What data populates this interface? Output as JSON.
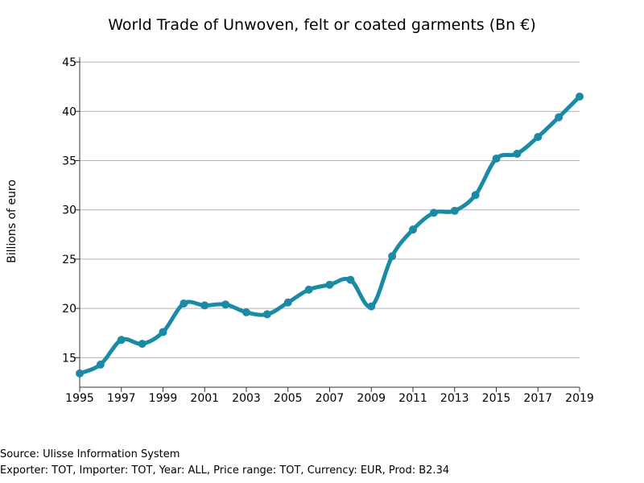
{
  "chart_data": {
    "type": "line",
    "title": "World Trade of Unwoven, felt or coated garments (Bn €)",
    "xlabel": "",
    "ylabel": "Billions of euro",
    "x": [
      1995,
      1996,
      1997,
      1998,
      1999,
      2000,
      2001,
      2002,
      2003,
      2004,
      2005,
      2006,
      2007,
      2008,
      2009,
      2010,
      2011,
      2012,
      2013,
      2014,
      2015,
      2016,
      2017,
      2018,
      2019
    ],
    "series": [
      {
        "values": [
          13.4,
          14.3,
          16.8,
          16.4,
          17.6,
          20.5,
          20.3,
          20.4,
          19.6,
          19.4,
          20.6,
          21.9,
          22.4,
          22.9,
          20.2,
          25.3,
          28.0,
          29.7,
          29.9,
          31.5,
          35.2,
          35.7,
          37.4,
          39.4,
          41.5
        ]
      }
    ],
    "xlim": [
      1995,
      2019
    ],
    "ylim": [
      12,
      45.5
    ],
    "xticks": [
      1995,
      1997,
      1999,
      2001,
      2003,
      2005,
      2007,
      2009,
      2011,
      2013,
      2015,
      2017,
      2019
    ],
    "yticks": [
      15,
      20,
      25,
      30,
      35,
      40,
      45
    ],
    "grid": "horizontal",
    "line_color": "#1a8aa5"
  },
  "footer": {
    "source": "Source: Ulisse Information System",
    "details": "Exporter: TOT, Importer: TOT, Year: ALL, Price range: TOT, Currency: EUR, Prod: B2.34"
  }
}
